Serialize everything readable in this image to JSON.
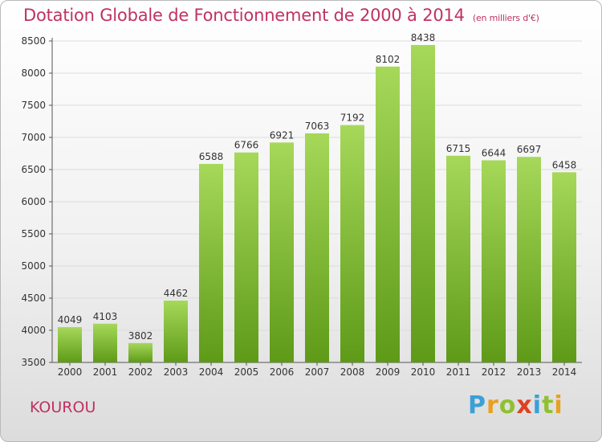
{
  "header": {
    "title": "Dotation Globale de Fonctionnement de 2000 à 2014",
    "subtitle": "(en milliers d'€)"
  },
  "footer": {
    "place": "KOUROU",
    "brand_letters": [
      "P",
      "r",
      "o",
      "x",
      "i",
      "t",
      "i"
    ]
  },
  "colors": {
    "title": "#c0325f",
    "bar_top": "#a6d85a",
    "bar_bottom": "#5e9a18",
    "grid": "#dcdcdc"
  },
  "chart_data": {
    "type": "bar",
    "title": "Dotation Globale de Fonctionnement de 2000 à 2014",
    "subtitle": "(en milliers d'€)",
    "categories": [
      "2000",
      "2001",
      "2002",
      "2003",
      "2004",
      "2005",
      "2006",
      "2007",
      "2008",
      "2009",
      "2010",
      "2011",
      "2012",
      "2013",
      "2014"
    ],
    "values": [
      4049,
      4103,
      3802,
      4462,
      6588,
      6766,
      6921,
      7063,
      7192,
      8102,
      8438,
      6715,
      6644,
      6697,
      6458
    ],
    "ylim": [
      3500,
      8500
    ],
    "yticks": [
      "3500",
      "4000",
      "4500",
      "5000",
      "5500",
      "6000",
      "6500",
      "7000",
      "7500",
      "8000",
      "8500"
    ],
    "grid": true,
    "xlabel": "",
    "ylabel": ""
  }
}
